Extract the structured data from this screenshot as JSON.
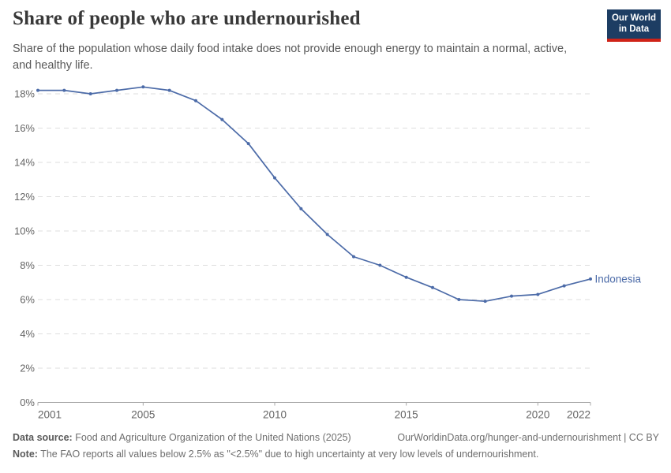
{
  "header": {
    "title": "Share of people who are undernourished",
    "subtitle": "Share of the population whose daily food intake does not provide enough energy to maintain a normal, active, and healthy life.",
    "logo_line1": "Our World",
    "logo_line2": "in Data"
  },
  "chart_data": {
    "type": "line",
    "title": "Share of people who are undernourished",
    "x": [
      2001,
      2002,
      2003,
      2004,
      2005,
      2006,
      2007,
      2008,
      2009,
      2010,
      2011,
      2012,
      2013,
      2014,
      2015,
      2016,
      2017,
      2018,
      2019,
      2020,
      2021,
      2022
    ],
    "series": [
      {
        "name": "Indonesia",
        "color": "#4c6ba8",
        "values": [
          18.2,
          18.2,
          18.0,
          18.2,
          18.4,
          18.2,
          17.6,
          16.5,
          15.1,
          13.1,
          11.3,
          9.8,
          8.5,
          8.0,
          7.3,
          6.7,
          6.0,
          5.9,
          6.2,
          6.3,
          6.8,
          7.2
        ]
      }
    ],
    "end_label": "Indonesia",
    "x_ticks": [
      2001,
      2005,
      2010,
      2015,
      2020,
      2022
    ],
    "y_ticks": [
      0,
      2,
      4,
      6,
      8,
      10,
      12,
      14,
      16,
      18
    ],
    "y_tick_suffix": "%",
    "xlim": [
      2001,
      2022
    ],
    "ylim": [
      0,
      18.5
    ],
    "grid": "horizontal-dashed",
    "legend_position": "end-of-line",
    "xlabel": "",
    "ylabel": ""
  },
  "footer": {
    "datasource_label": "Data source:",
    "datasource_text": " Food and Agriculture Organization of the United Nations (2025)",
    "link_text": "OurWorldinData.org/hunger-and-undernourishment | CC BY",
    "note_label": "Note:",
    "note_text": " The FAO reports all values below 2.5% as \"<2.5%\" due to high uncertainty at very low levels of undernourishment."
  },
  "colors": {
    "line": "#4c6ba8",
    "grid": "#dedede",
    "axis": "#a8a8a8",
    "tick_label": "#666666",
    "logo_navy": "#1d3d63",
    "logo_red": "#cf2318"
  }
}
